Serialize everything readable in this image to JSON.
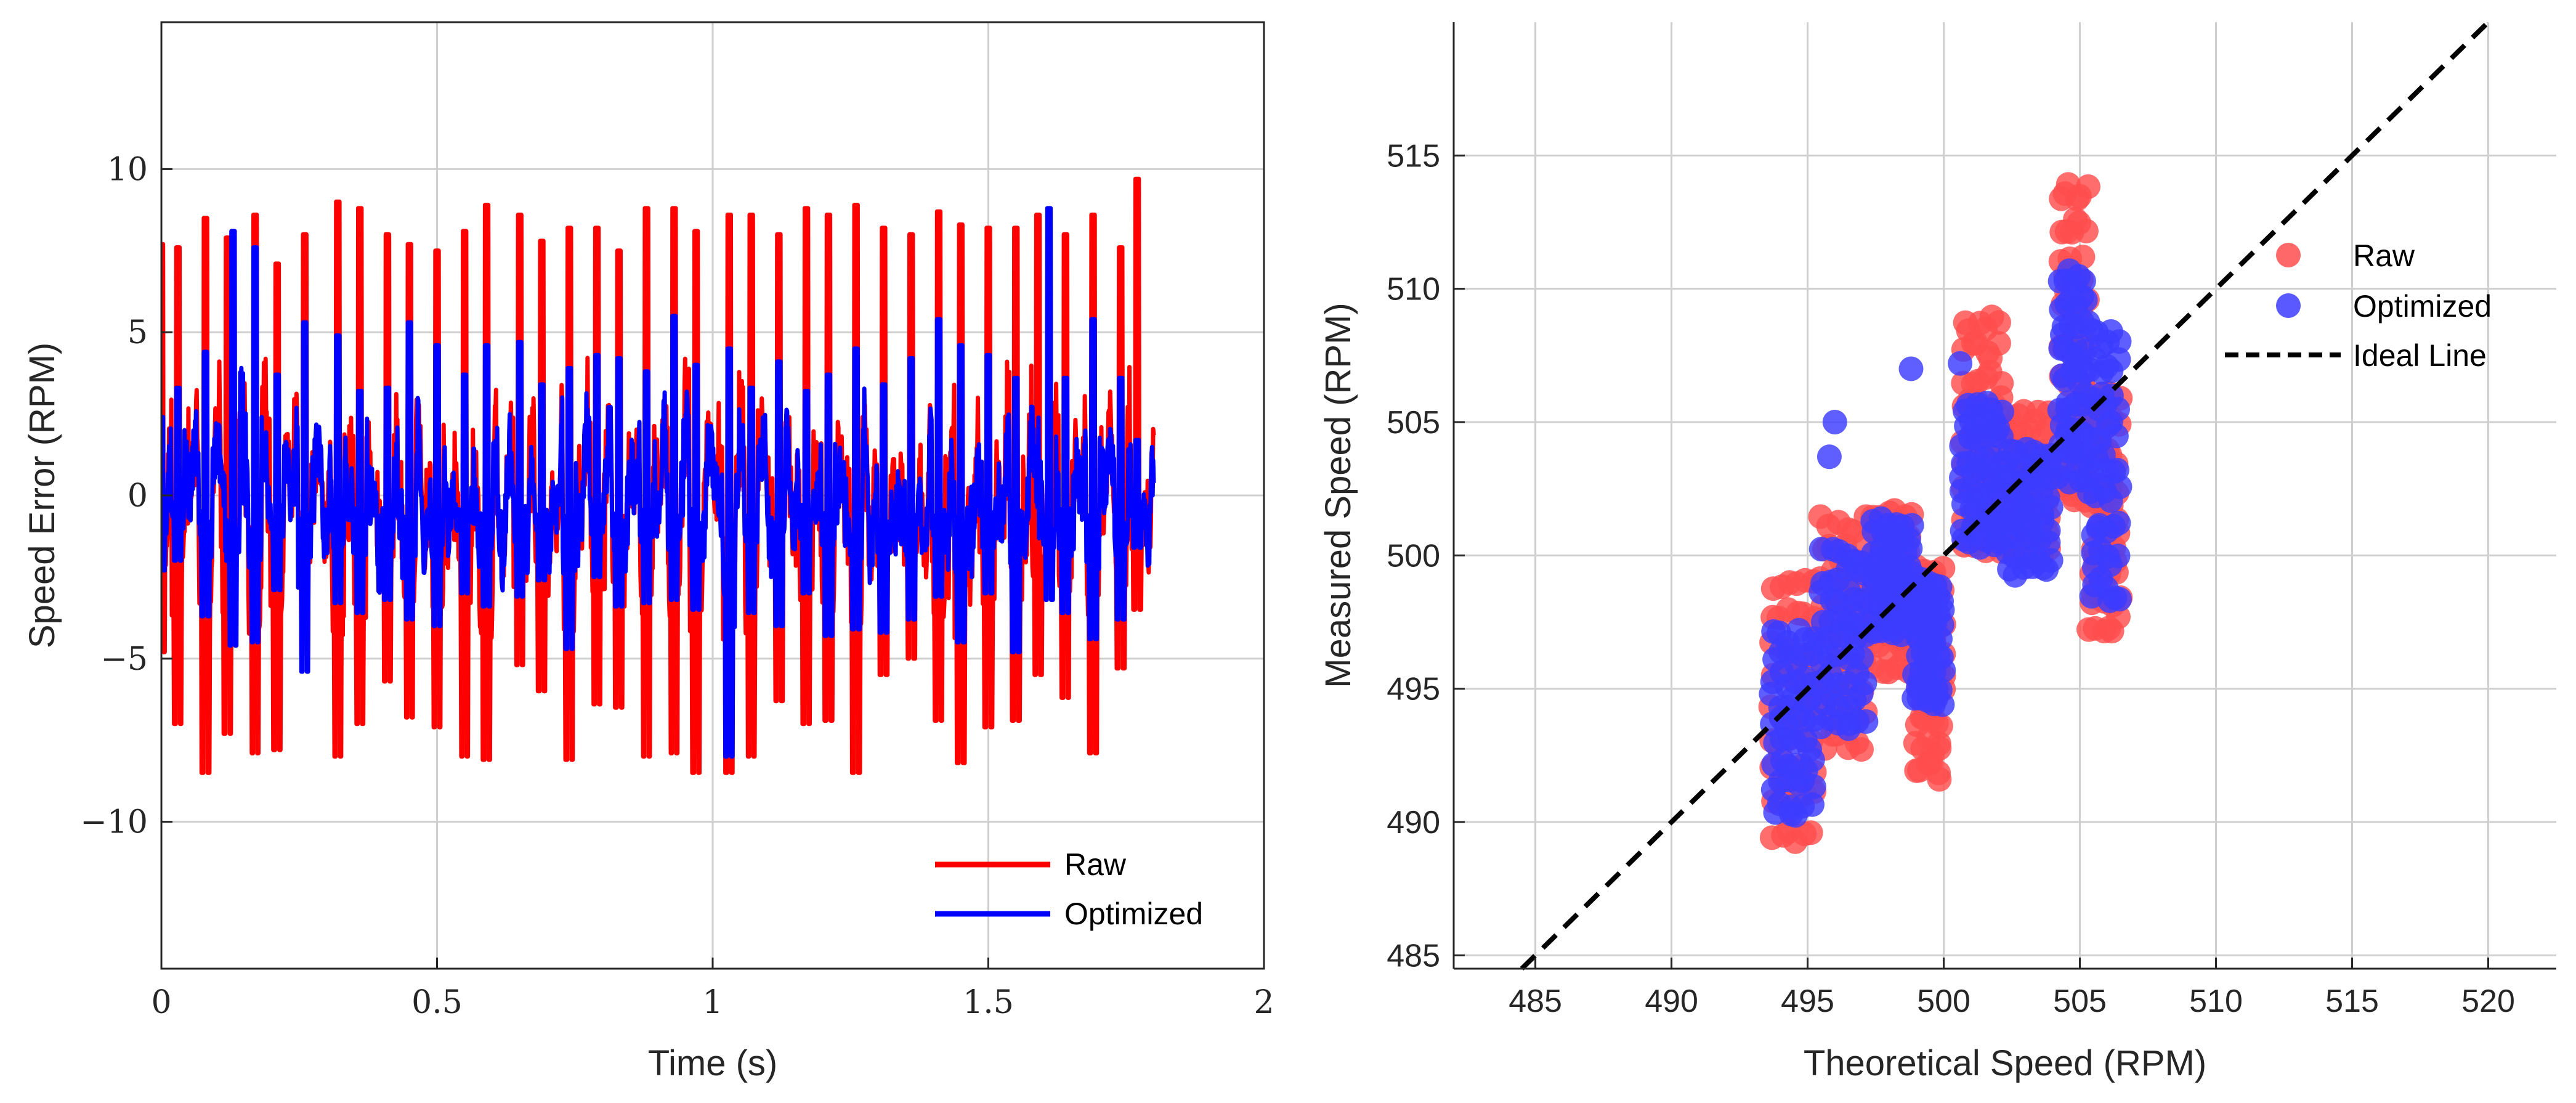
{
  "chart_data": [
    {
      "type": "line",
      "title": "",
      "xlabel": "Time (s)",
      "ylabel": "Speed Error (RPM)",
      "xlim": [
        0,
        2
      ],
      "ylim": [
        -14.5,
        14.5
      ],
      "xticks": [
        0,
        0.5,
        1,
        1.5,
        2
      ],
      "xtick_labels": [
        "0",
        "0.5",
        "1",
        "1.5",
        "2"
      ],
      "yticks": [
        -10,
        -5,
        0,
        5,
        10
      ],
      "ytick_labels": [
        "−10",
        "−5",
        "0",
        "5",
        "10"
      ],
      "grid": true,
      "legend_position": "bottom-right",
      "colors": {
        "Raw": "#ff0000",
        "Optimized": "#0000ff"
      },
      "signal": {
        "duration_s": 1.8,
        "samples": 1800
      },
      "series": [
        {
          "name": "Raw",
          "description_values": "oscillating speed error, amplitude about ±9 RPM",
          "peak_times": [
            0.0,
            0.03,
            0.08,
            0.12,
            0.17,
            0.21,
            0.26,
            0.32,
            0.36,
            0.41,
            0.45,
            0.5,
            0.55,
            0.59,
            0.65,
            0.69,
            0.74,
            0.79,
            0.83,
            0.88,
            0.93,
            0.97,
            1.03,
            1.07,
            1.12,
            1.17,
            1.21,
            1.26,
            1.31,
            1.36,
            1.41,
            1.45,
            1.5,
            1.55,
            1.59,
            1.64,
            1.69,
            1.74,
            1.77
          ],
          "peak_values": [
            7.7,
            7.6,
            8.5,
            7.9,
            8.6,
            7.1,
            8.0,
            9.0,
            8.8,
            8.0,
            7.7,
            7.5,
            8.1,
            8.9,
            8.6,
            7.8,
            8.2,
            8.2,
            7.5,
            8.8,
            8.8,
            8.1,
            8.6,
            8.6,
            8.0,
            8.8,
            8.6,
            8.9,
            8.2,
            8.0,
            8.7,
            8.3,
            8.2,
            8.2,
            8.6,
            8.0,
            8.6,
            7.6,
            9.7
          ],
          "trough_values": [
            -4.8,
            -7.0,
            -8.5,
            -7.3,
            -7.9,
            -7.8,
            -4.9,
            -8.0,
            -7.0,
            -5.7,
            -6.8,
            -7.1,
            -8.0,
            -8.1,
            -5.2,
            -6.0,
            -8.1,
            -6.4,
            -6.5,
            -8.0,
            -7.9,
            -8.5,
            -8.5,
            -8.0,
            -6.3,
            -7.0,
            -6.9,
            -8.5,
            -5.5,
            -5.0,
            -6.9,
            -8.2,
            -7.1,
            -6.9,
            -5.5,
            -6.2,
            -7.9,
            -5.3,
            -3.5
          ]
        },
        {
          "name": "Optimized",
          "description_values": "oscillating speed error, amplitude about ±4 RPM with occasional peaks up to 8.8 RPM",
          "peak_times": [
            0.0,
            0.03,
            0.08,
            0.13,
            0.17,
            0.21,
            0.26,
            0.32,
            0.36,
            0.41,
            0.45,
            0.5,
            0.55,
            0.59,
            0.65,
            0.69,
            0.74,
            0.79,
            0.83,
            0.88,
            0.93,
            0.97,
            1.03,
            1.07,
            1.12,
            1.17,
            1.21,
            1.26,
            1.31,
            1.36,
            1.41,
            1.45,
            1.5,
            1.55,
            1.61,
            1.64,
            1.69,
            1.74,
            1.77
          ],
          "peak_values": [
            2.4,
            3.3,
            4.4,
            8.1,
            7.6,
            3.7,
            5.3,
            4.9,
            3.2,
            3.3,
            5.3,
            4.6,
            3.7,
            4.6,
            4.7,
            3.4,
            3.9,
            4.3,
            4.2,
            3.8,
            5.5,
            4.0,
            4.5,
            3.3,
            4.1,
            3.2,
            3.7,
            4.5,
            3.4,
            4.2,
            5.4,
            4.6,
            4.3,
            3.6,
            8.8,
            3.6,
            5.4,
            3.6,
            1.7
          ],
          "trough_values": [
            -2.3,
            -2.0,
            -3.7,
            -4.6,
            -4.5,
            -2.9,
            -5.4,
            -3.3,
            -3.6,
            -3.2,
            -3.8,
            -4.0,
            -3.0,
            -3.4,
            -3.1,
            -2.6,
            -4.7,
            -2.5,
            -3.4,
            -3.3,
            -3.2,
            -3.5,
            -8.0,
            -3.6,
            -4.0,
            -3.0,
            -4.3,
            -4.1,
            -4.2,
            -3.8,
            -3.1,
            -4.5,
            -3.0,
            -4.8,
            -3.2,
            -3.6,
            -4.4,
            -3.8,
            -1.6
          ]
        }
      ]
    },
    {
      "type": "scatter",
      "title": "",
      "xlabel": "Theoretical Speed (RPM)",
      "ylabel": "Measured Speed (RPM)",
      "xlim": [
        482,
        522.5
      ],
      "ylim": [
        484.5,
        520
      ],
      "xticks": [
        485,
        490,
        495,
        500,
        505,
        510,
        515,
        520
      ],
      "xtick_labels": [
        "485",
        "490",
        "495",
        "500",
        "505",
        "510",
        "515",
        "520"
      ],
      "yticks": [
        485,
        490,
        495,
        500,
        505,
        510,
        515
      ],
      "ytick_labels": [
        "485",
        "490",
        "495",
        "500",
        "505",
        "510",
        "515"
      ],
      "grid": true,
      "legend_position": "top-right",
      "colors": {
        "Raw": "#ff4d4d",
        "Optimized": "#3c3cff",
        "Ideal Line": "#000000"
      },
      "ideal_line": {
        "name": "Ideal Line",
        "x": [
          484,
          521
        ],
        "y": [
          484,
          521
        ],
        "style": "dashed"
      },
      "clusters": [
        {
          "x_range": [
            493.6,
            495.3
          ],
          "raw_y": [
            489.2,
            499.5
          ],
          "opt_y": [
            490.2,
            497.5
          ]
        },
        {
          "x_range": [
            495.4,
            497.2
          ],
          "raw_y": [
            492.6,
            501.8
          ],
          "opt_y": [
            493.5,
            500.5
          ]
        },
        {
          "x_range": [
            497.3,
            498.9
          ],
          "raw_y": [
            495.5,
            502.0
          ],
          "opt_y": [
            497.0,
            501.6
          ]
        },
        {
          "x_range": [
            498.9,
            500.0
          ],
          "raw_y": [
            491.6,
            500.0
          ],
          "opt_y": [
            494.4,
            499.3
          ]
        },
        {
          "x_range": [
            500.6,
            502.2
          ],
          "raw_y": [
            500.0,
            509.4
          ],
          "opt_y": [
            500.2,
            506.0
          ]
        },
        {
          "x_range": [
            502.2,
            504.0
          ],
          "raw_y": [
            499.8,
            505.6
          ],
          "opt_y": [
            499.2,
            504.3
          ]
        },
        {
          "x_range": [
            504.2,
            505.3
          ],
          "raw_y": [
            502.0,
            514.5
          ],
          "opt_y": [
            502.6,
            511.0
          ]
        },
        {
          "x_range": [
            505.3,
            506.5
          ],
          "raw_y": [
            497.0,
            506.6
          ],
          "opt_y": [
            498.3,
            509.0
          ]
        }
      ],
      "outliers": [
        {
          "series": "Optimized",
          "x": 498.8,
          "y": 507.0
        },
        {
          "series": "Optimized",
          "x": 500.6,
          "y": 507.2
        },
        {
          "series": "Optimized",
          "x": 496.0,
          "y": 505.0
        },
        {
          "series": "Optimized",
          "x": 495.8,
          "y": 503.7
        },
        {
          "series": "Optimized",
          "x": 496.5,
          "y": 493.5
        },
        {
          "series": "Optimized",
          "x": 494.4,
          "y": 490.3
        },
        {
          "series": "Optimized",
          "x": 506.1,
          "y": 498.3
        }
      ],
      "series": [
        {
          "name": "Raw",
          "marker": "circle"
        },
        {
          "name": "Optimized",
          "marker": "circle"
        },
        {
          "name": "Ideal Line",
          "marker": "dashed-line"
        }
      ]
    }
  ]
}
